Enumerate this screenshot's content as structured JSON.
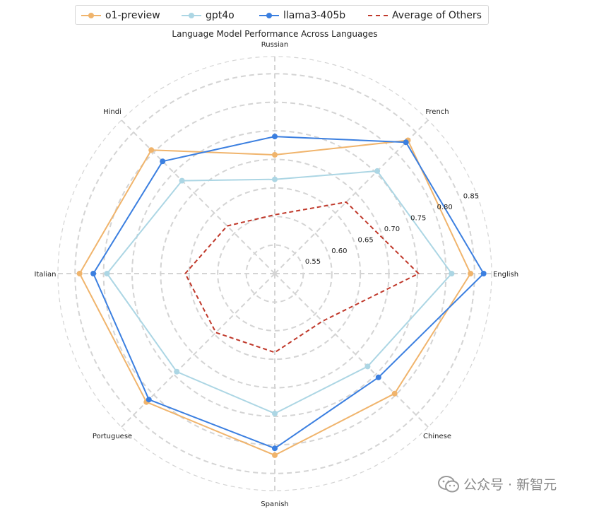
{
  "chart_data": {
    "type": "radar",
    "title": "Language Model Performance Across Languages",
    "categories": [
      "English",
      "French",
      "Russian",
      "Hindi",
      "Italian",
      "Portuguese",
      "Spanish",
      "Chinese"
    ],
    "radial_ticks": [
      0.55,
      0.6,
      0.65,
      0.7,
      0.75,
      0.8,
      0.85
    ],
    "radial_tick_labels": [
      "0.55",
      "0.60",
      "0.65",
      "0.70",
      "0.75",
      "0.80",
      "0.85"
    ],
    "rlim": [
      0.5,
      0.88
    ],
    "grid": true,
    "legend_position": "top",
    "series": [
      {
        "name": "o1-preview",
        "color": "#f0b46c",
        "style": "solid",
        "markers": true,
        "values": [
          0.843,
          0.83,
          0.708,
          0.806,
          0.842,
          0.818,
          0.818,
          0.797
        ]
      },
      {
        "name": "gpt4o",
        "color": "#acd6e4",
        "style": "solid",
        "markers": true,
        "values": [
          0.81,
          0.754,
          0.665,
          0.73,
          0.794,
          0.743,
          0.745,
          0.73
        ]
      },
      {
        "name": "llama3-405b",
        "color": "#3b7fe0",
        "style": "solid",
        "markers": true,
        "values": [
          0.866,
          0.825,
          0.74,
          0.778,
          0.818,
          0.812,
          0.806,
          0.757
        ]
      },
      {
        "name": "Average of Others",
        "color": "#c0392b",
        "style": "dashed",
        "markers": false,
        "values": [
          0.752,
          0.677,
          0.603,
          0.618,
          0.657,
          0.646,
          0.638,
          0.618
        ]
      }
    ]
  },
  "watermark": {
    "text": "公众号 · 新智元"
  }
}
